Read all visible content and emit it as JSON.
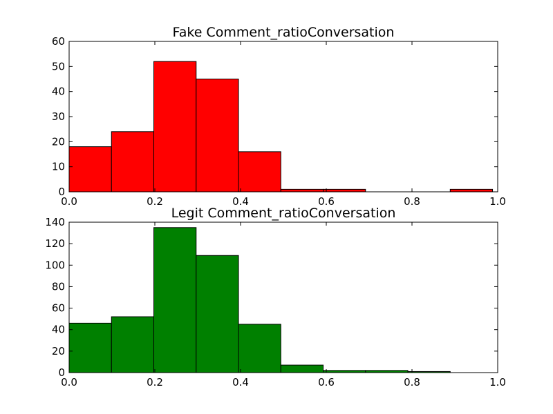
{
  "chart_data": [
    {
      "type": "bar",
      "title": "Fake Comment_ratioConversation",
      "color": "#ff0000",
      "xlim": [
        0.0,
        1.0
      ],
      "ylim": [
        0,
        60
      ],
      "x_ticks": [
        "0.0",
        "0.2",
        "0.4",
        "0.6",
        "0.8",
        "1.0"
      ],
      "y_ticks": [
        "0",
        "10",
        "20",
        "30",
        "40",
        "50",
        "60"
      ],
      "bin_edges": [
        0.0,
        0.0988,
        0.1976,
        0.2964,
        0.3952,
        0.494,
        0.5928,
        0.6916,
        0.7904,
        0.8892,
        0.988
      ],
      "values": [
        18,
        24,
        52,
        45,
        16,
        1,
        1,
        0,
        0,
        1
      ]
    },
    {
      "type": "bar",
      "title": "Legit Comment_ratioConversation",
      "color": "#008000",
      "xlim": [
        0.0,
        1.0
      ],
      "ylim": [
        0,
        140
      ],
      "x_ticks": [
        "0.0",
        "0.2",
        "0.4",
        "0.6",
        "0.8",
        "1.0"
      ],
      "y_ticks": [
        "0",
        "20",
        "40",
        "60",
        "80",
        "100",
        "120",
        "140"
      ],
      "bin_edges": [
        0.0,
        0.0988,
        0.1976,
        0.2964,
        0.3952,
        0.494,
        0.5928,
        0.6916,
        0.7904,
        0.8892,
        0.988
      ],
      "values": [
        46,
        52,
        135,
        109,
        45,
        7,
        2,
        2,
        1,
        0
      ]
    }
  ]
}
